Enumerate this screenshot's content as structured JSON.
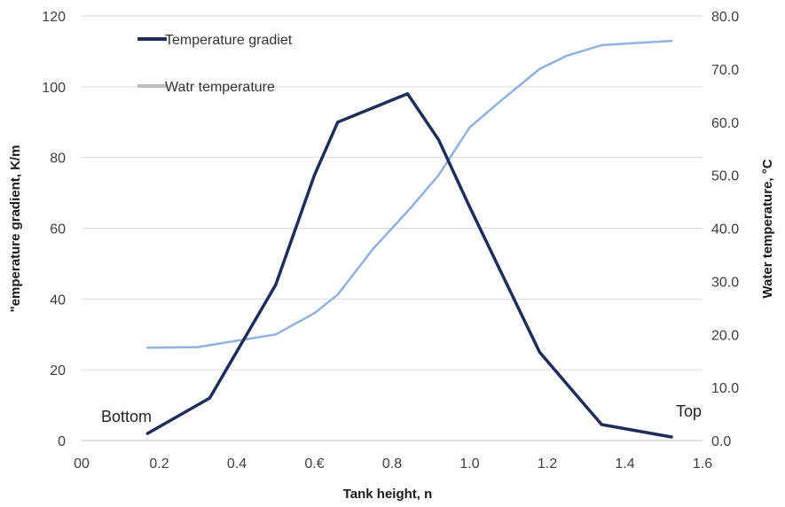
{
  "chart_data": {
    "type": "line",
    "title": "",
    "xlabel": "Tank height, n",
    "ylabel_left": "\"emperature gradient, K/m",
    "ylabel_right": "Water temperature, °C",
    "xlim": [
      0,
      1.6
    ],
    "ylim_left": [
      0,
      120
    ],
    "ylim_right": [
      0,
      80
    ],
    "x_tick_labels": [
      "00",
      "0.2",
      "0.4",
      "0.€",
      "0.8",
      "1.0",
      "1.2",
      "1.4",
      "1.6"
    ],
    "y_left_tick_labels": [
      "0",
      "20",
      "40",
      "60",
      "80",
      "100",
      "120"
    ],
    "y_right_tick_labels": [
      "0.0",
      "10.0",
      "20.0",
      "30.0",
      "40.0",
      "50.0",
      "60.0",
      "70.0",
      "80.0"
    ],
    "grid": "horizontal",
    "legend_position": "top-left",
    "series": [
      {
        "name": "Temperature gradiet",
        "axis": "left",
        "color": "#1f2d5a",
        "x": [
          0.17,
          0.33,
          0.5,
          0.6,
          0.66,
          0.84,
          0.92,
          1.0,
          1.18,
          1.25,
          1.34,
          1.52
        ],
        "y": [
          2,
          12,
          44,
          75,
          90,
          98,
          85,
          66,
          25,
          16,
          4.5,
          1
        ]
      },
      {
        "name": "Watr temperature",
        "axis": "right",
        "color": "#8fb1e0",
        "x": [
          0.17,
          0.3,
          0.4,
          0.5,
          0.6,
          0.66,
          0.75,
          0.85,
          0.92,
          1.0,
          1.08,
          1.18,
          1.25,
          1.34,
          1.52
        ],
        "y": [
          17.5,
          17.6,
          18.8,
          20.0,
          24.0,
          27.5,
          36.0,
          44.0,
          50.0,
          59.0,
          64.0,
          70.0,
          72.5,
          74.5,
          75.3
        ]
      }
    ],
    "annotations": [
      "Bottom",
      "Top"
    ]
  }
}
